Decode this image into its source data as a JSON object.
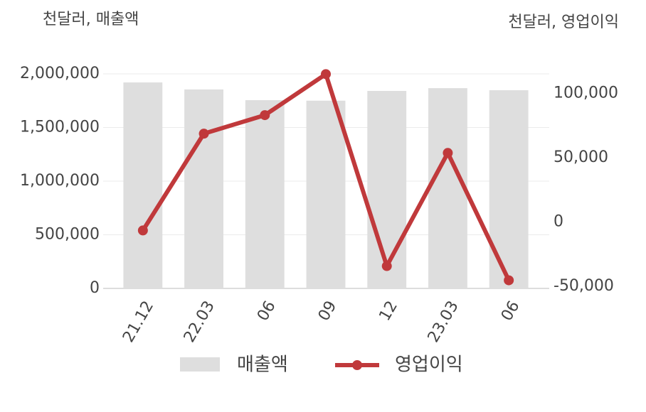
{
  "chart_data": {
    "type": "bar-line",
    "y_axis_title": "천달러, 매출액",
    "y2_axis_title": "천달러, 영업이익",
    "categories": [
      "21.12",
      "22.03",
      "06",
      "09",
      "12",
      "23.03",
      "06"
    ],
    "series": [
      {
        "name": "매출액",
        "type": "bar",
        "color": "#dedede",
        "values": [
          1920000,
          1855000,
          1755000,
          1750000,
          1841000,
          1867000,
          1848000
        ]
      },
      {
        "name": "영업이익",
        "type": "line",
        "axis": "y2",
        "color": "#c0393b",
        "values": [
          -6600,
          68700,
          83100,
          115000,
          -34300,
          53700,
          -45400
        ]
      }
    ],
    "ylim": [
      0,
      2000000
    ],
    "yticks": [
      0,
      {
        "value": 500000,
        "label": "500,000"
      },
      {
        "value": 1000000,
        "label": "1,000,000"
      },
      {
        "value": 1500000,
        "label": "1,500,000"
      },
      {
        "value": 2000000,
        "label": "2,000,000"
      }
    ],
    "y2lim": [
      -51700,
      115200
    ],
    "y2ticks": [
      {
        "value": -50000,
        "label": "-50,000"
      },
      0,
      {
        "value": 50000,
        "label": "50,000"
      },
      {
        "value": 100000,
        "label": "100,000"
      }
    ],
    "grid": true,
    "legend": "bottom"
  }
}
